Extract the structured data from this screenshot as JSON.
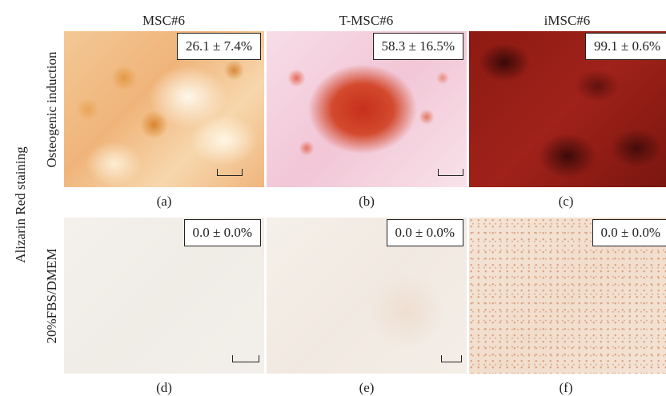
{
  "side_label": "Alizarin Red staining",
  "columns": [
    "MSC#6",
    "T-MSC#6",
    "iMSC#6"
  ],
  "rows": [
    "Osteogenic induction",
    "20%FBS/DMEM"
  ],
  "panels": [
    {
      "letter": "(a)",
      "stat": "26.1 ± 7.4%"
    },
    {
      "letter": "(b)",
      "stat": "58.3 ± 16.5%"
    },
    {
      "letter": "(c)",
      "stat": "99.1 ± 0.6%"
    },
    {
      "letter": "(d)",
      "stat": "0.0 ± 0.0%"
    },
    {
      "letter": "(e)",
      "stat": "0.0 ± 0.0%"
    },
    {
      "letter": "(f)",
      "stat": "0.0 ± 0.0%"
    }
  ]
}
